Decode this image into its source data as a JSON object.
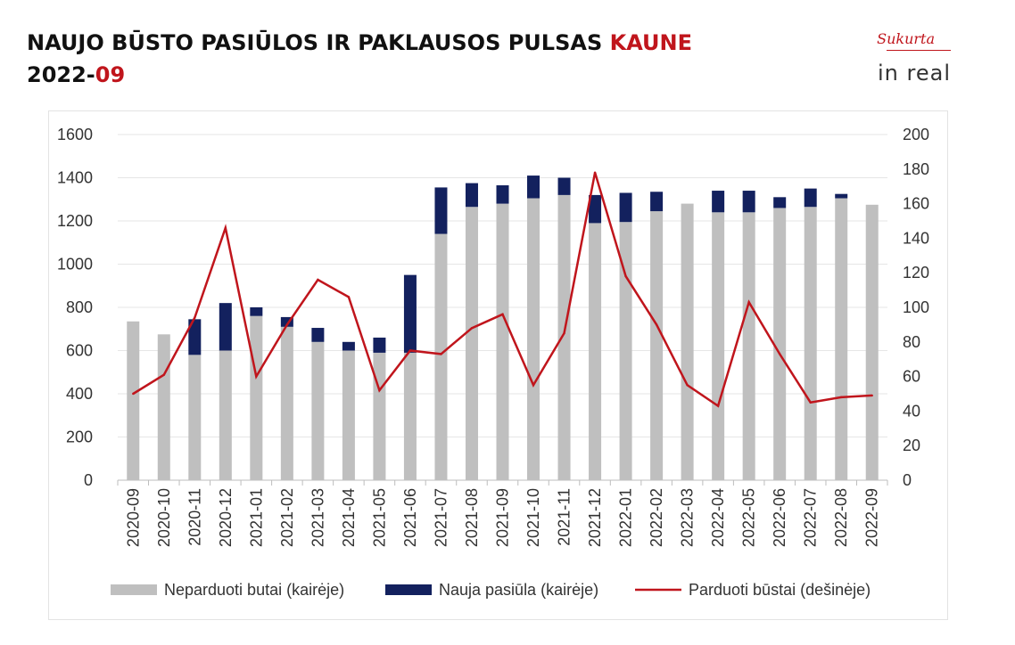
{
  "title": {
    "line1_main": "NAUJO BŪSTO PASIŪLOS IR PAKLAUSOS PULSAS",
    "line1_accent": "KAUNE",
    "line2_main": "2022-",
    "line2_accent": "09"
  },
  "logo": {
    "small": "Sukurta",
    "brand": "in real"
  },
  "colors": {
    "accent": "#c0151c",
    "unsold": "#bfbfbf",
    "new": "#13215e",
    "sold": "#c0151c"
  },
  "chart_data": {
    "type": "bar",
    "stacked": true,
    "categories": [
      "2020-09",
      "2020-10",
      "2020-11",
      "2020-12",
      "2021-01",
      "2021-02",
      "2021-03",
      "2021-04",
      "2021-05",
      "2021-06",
      "2021-07",
      "2021-08",
      "2021-09",
      "2021-10",
      "2021-11",
      "2021-12",
      "2022-01",
      "2022-02",
      "2022-03",
      "2022-04",
      "2022-05",
      "2022-06",
      "2022-07",
      "2022-08",
      "2022-09"
    ],
    "series": [
      {
        "name": "Neparduoti butai (kairėje)",
        "type": "bar",
        "axis": "left",
        "values": [
          735,
          675,
          580,
          600,
          760,
          710,
          640,
          600,
          590,
          590,
          1140,
          1265,
          1280,
          1305,
          1320,
          1190,
          1195,
          1245,
          1280,
          1240,
          1240,
          1260,
          1265,
          1305,
          1275
        ]
      },
      {
        "name": "Nauja pasiūla (kairėje)",
        "type": "bar",
        "axis": "left",
        "values": [
          0,
          0,
          165,
          220,
          40,
          45,
          65,
          40,
          70,
          360,
          215,
          110,
          85,
          105,
          80,
          130,
          135,
          90,
          0,
          100,
          100,
          50,
          85,
          20,
          0
        ]
      },
      {
        "name": "Parduoti būstai (dešinėje)",
        "type": "line",
        "axis": "right",
        "values": [
          50,
          61,
          94,
          146,
          60,
          90,
          116,
          106,
          52,
          75,
          73,
          88,
          96,
          55,
          85,
          178,
          118,
          90,
          55,
          43,
          103,
          73,
          45,
          48,
          49
        ]
      }
    ],
    "y_left": {
      "min": 0,
      "max": 1600,
      "ticks": [
        0,
        200,
        400,
        600,
        800,
        1000,
        1200,
        1400,
        1600
      ]
    },
    "y_right": {
      "min": 0,
      "max": 200,
      "ticks": [
        0,
        20,
        40,
        60,
        80,
        100,
        120,
        140,
        160,
        180,
        200
      ]
    },
    "grid": true,
    "legend_position": "bottom"
  }
}
